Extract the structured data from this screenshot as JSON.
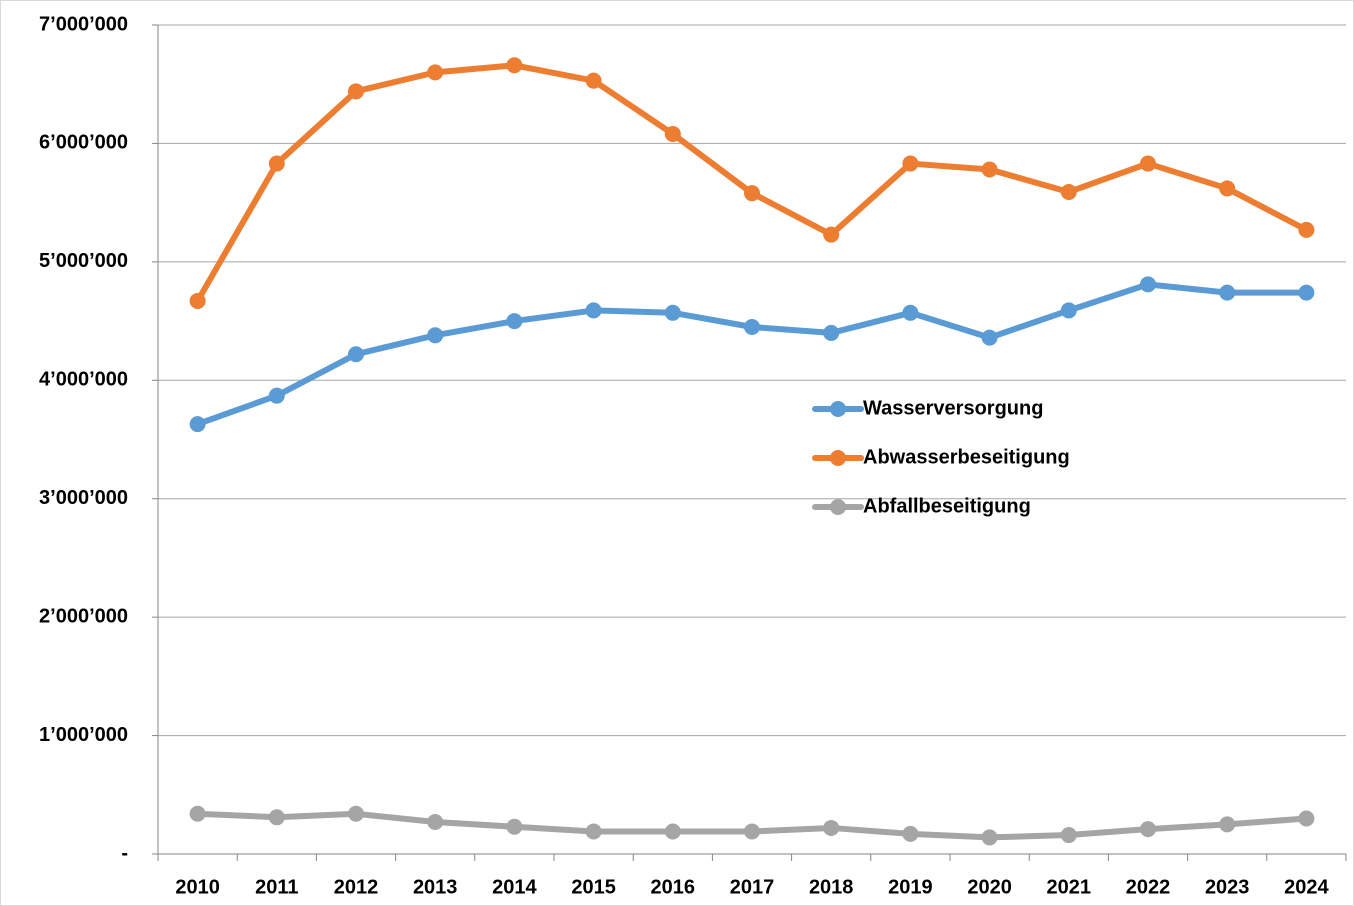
{
  "chart_data": {
    "type": "line",
    "categories": [
      "2010",
      "2011",
      "2012",
      "2013",
      "2014",
      "2015",
      "2016",
      "2017",
      "2018",
      "2019",
      "2020",
      "2021",
      "2022",
      "2023",
      "2024"
    ],
    "series": [
      {
        "name": "Wasserversorgung",
        "color": "#5b9bd5",
        "values": [
          3630000,
          3870000,
          4220000,
          4380000,
          4500000,
          4590000,
          4570000,
          4450000,
          4400000,
          4570000,
          4360000,
          4590000,
          4810000,
          4740000,
          4740000
        ]
      },
      {
        "name": "Abwasserbeseitigung",
        "color": "#ed7d31",
        "values": [
          4670000,
          5830000,
          6440000,
          6600000,
          6660000,
          6530000,
          6080000,
          5580000,
          5230000,
          5830000,
          5780000,
          5590000,
          5830000,
          5620000,
          5270000
        ]
      },
      {
        "name": "Abfallbeseitigung",
        "color": "#a5a5a5",
        "values": [
          340000,
          310000,
          340000,
          270000,
          230000,
          190000,
          190000,
          190000,
          220000,
          170000,
          140000,
          160000,
          210000,
          250000,
          300000
        ]
      }
    ],
    "ylim": [
      0,
      7000000
    ],
    "yticks": [
      {
        "value": 0,
        "label": "-"
      },
      {
        "value": 1000000,
        "label": "1’000’000"
      },
      {
        "value": 2000000,
        "label": "2’000’000"
      },
      {
        "value": 3000000,
        "label": "3’000’000"
      },
      {
        "value": 4000000,
        "label": "4’000’000"
      },
      {
        "value": 5000000,
        "label": "5’000’000"
      },
      {
        "value": 6000000,
        "label": "6’000’000"
      },
      {
        "value": 7000000,
        "label": "7’000’000"
      }
    ],
    "grid": true,
    "legend": "right"
  }
}
